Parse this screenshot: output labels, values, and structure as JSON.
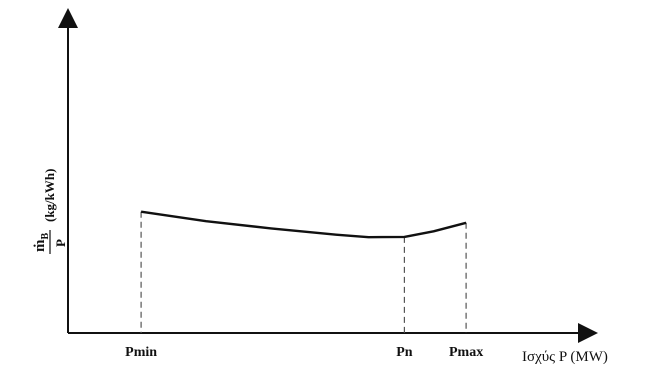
{
  "chart_data": {
    "type": "line",
    "title": "",
    "xlabel": "Ισχύς P (MW)",
    "ylabel": {
      "numerator": "ṁ",
      "numerator_subscript": "B",
      "denominator": "P",
      "unit": "(kg/kWh)"
    },
    "x_ticks": [
      {
        "label": "Pmin",
        "x": 0
      },
      {
        "label": "Pn",
        "x": 81
      },
      {
        "label": "Pmax",
        "x": 100
      }
    ],
    "xlim": [
      -22.5,
      137.5
    ],
    "ylim": [
      0,
      100
    ],
    "series": [
      {
        "x": [
          0,
          20,
          40,
          60,
          70,
          81,
          90,
          100
        ],
        "y": [
          38.5,
          35.5,
          33.2,
          31.2,
          30.4,
          30.5,
          32.3,
          35
        ]
      }
    ],
    "grid": false,
    "legend": "none",
    "colors": {
      "line": "#111111",
      "axis": "#111111",
      "dashed": "#555555"
    }
  }
}
